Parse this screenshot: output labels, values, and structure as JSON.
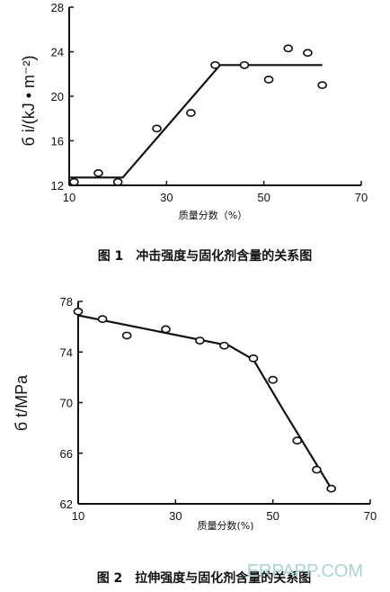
{
  "chart_data": [
    {
      "type": "scatter",
      "title": "",
      "caption": "图 1　冲击强度与固化剂含量的关系图",
      "xlabel": "质量分数（%）",
      "ylabel": "б i/(kJ • m⁻²)",
      "xlim": [
        10,
        70
      ],
      "ylim": [
        12,
        28
      ],
      "xticks": [
        10,
        30,
        50,
        70
      ],
      "yticks": [
        12,
        16,
        20,
        24,
        28
      ],
      "series": [
        {
          "points": [
            [
              11,
              12.3
            ],
            [
              16,
              13.1
            ],
            [
              20,
              12.3
            ],
            [
              28,
              17.1
            ],
            [
              35,
              18.5
            ],
            [
              40,
              22.8
            ],
            [
              46,
              22.8
            ],
            [
              51,
              21.5
            ],
            [
              55,
              24.3
            ],
            [
              59,
              23.9
            ],
            [
              62,
              21.0
            ]
          ]
        }
      ],
      "fit_line": [
        [
          10,
          12.7
        ],
        [
          21,
          12.7
        ],
        [
          41,
          22.8
        ],
        [
          62,
          22.8
        ]
      ]
    },
    {
      "type": "scatter",
      "title": "",
      "caption": "图 2　拉伸强度与固化剂含量的关系图",
      "xlabel": "质量分数(%)",
      "ylabel": "б t/MPa",
      "xlim": [
        10,
        70
      ],
      "ylim": [
        62,
        78
      ],
      "xticks": [
        10,
        30,
        50,
        70
      ],
      "yticks": [
        62,
        66,
        70,
        74,
        78
      ],
      "series": [
        {
          "points": [
            [
              10,
              77.2
            ],
            [
              15,
              76.6
            ],
            [
              20,
              75.3
            ],
            [
              28,
              75.8
            ],
            [
              35,
              74.9
            ],
            [
              40,
              74.5
            ],
            [
              46,
              73.5
            ],
            [
              50,
              71.8
            ],
            [
              55,
              67.0
            ],
            [
              59,
              64.7
            ],
            [
              62,
              63.2
            ]
          ]
        }
      ],
      "fit_line": [
        [
          10,
          76.9
        ],
        [
          41,
          74.5
        ],
        [
          46,
          73.4
        ],
        [
          52,
          69.5
        ],
        [
          62,
          63.2
        ]
      ]
    }
  ],
  "watermark": "ERPAPP.COM"
}
